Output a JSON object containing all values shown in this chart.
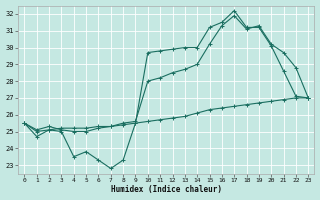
{
  "xlabel": "Humidex (Indice chaleur)",
  "bg_color": "#c5e8e2",
  "grid_color": "#b0d8d0",
  "line_color": "#1a6e60",
  "xlim": [
    -0.5,
    23.5
  ],
  "ylim": [
    22.5,
    32.5
  ],
  "xticks": [
    0,
    1,
    2,
    3,
    4,
    5,
    6,
    7,
    8,
    9,
    10,
    11,
    12,
    13,
    14,
    15,
    16,
    17,
    18,
    19,
    20,
    21,
    22,
    23
  ],
  "yticks": [
    23,
    24,
    25,
    26,
    27,
    28,
    29,
    30,
    31,
    32
  ],
  "line1_x": [
    0,
    1,
    2,
    3,
    4,
    5,
    6,
    7,
    8,
    9,
    10,
    11,
    12,
    13,
    14,
    15,
    16,
    17,
    18,
    19,
    20,
    21,
    22,
    23
  ],
  "line1_y": [
    25.5,
    24.7,
    25.1,
    25.0,
    23.5,
    23.8,
    23.3,
    22.8,
    23.3,
    25.5,
    29.7,
    29.8,
    29.9,
    30.0,
    30.0,
    31.2,
    31.5,
    32.2,
    31.2,
    31.2,
    30.1,
    28.6,
    27.1,
    27.0
  ],
  "line2_x": [
    0,
    1,
    2,
    3,
    4,
    5,
    6,
    7,
    8,
    9,
    10,
    11,
    12,
    13,
    14,
    15,
    16,
    17,
    18,
    19,
    20,
    21,
    22,
    23
  ],
  "line2_y": [
    25.5,
    25.1,
    25.3,
    25.1,
    25.0,
    25.0,
    25.2,
    25.3,
    25.5,
    25.6,
    28.0,
    28.2,
    28.5,
    28.7,
    29.0,
    30.2,
    31.3,
    31.9,
    31.1,
    31.3,
    30.2,
    29.7,
    28.8,
    27.0
  ],
  "line3_x": [
    0,
    1,
    2,
    3,
    4,
    5,
    6,
    7,
    8,
    9,
    10,
    11,
    12,
    13,
    14,
    15,
    16,
    17,
    18,
    19,
    20,
    21,
    22,
    23
  ],
  "line3_y": [
    25.5,
    25.0,
    25.1,
    25.2,
    25.2,
    25.2,
    25.3,
    25.3,
    25.4,
    25.5,
    25.6,
    25.7,
    25.8,
    25.9,
    26.1,
    26.3,
    26.4,
    26.5,
    26.6,
    26.7,
    26.8,
    26.9,
    27.0,
    27.0
  ]
}
